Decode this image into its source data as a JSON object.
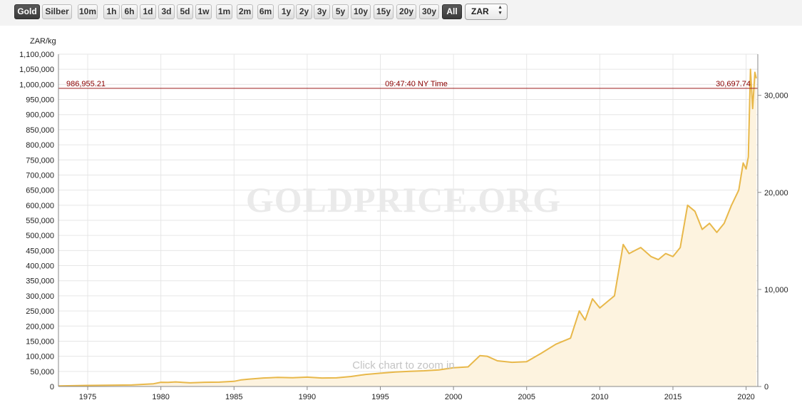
{
  "toolbar": {
    "metals": [
      {
        "label": "Gold",
        "active": true
      },
      {
        "label": "Silber",
        "active": false
      }
    ],
    "ranges": [
      "10m",
      "1h",
      "6h",
      "1d",
      "3d",
      "5d",
      "1w",
      "1m",
      "2m",
      "6m",
      "1y",
      "2y",
      "3y",
      "5y",
      "10y",
      "15y",
      "20y",
      "30y",
      "All"
    ],
    "active_range": "All",
    "currency": "ZAR"
  },
  "chart": {
    "watermark": "GOLDPRICE.ORG",
    "zoom_hint": "Click chart to zoom in",
    "crosshair": {
      "left_value": "986,955.21",
      "time": "09:47:40 NY Time",
      "right_value": "30,697.74"
    }
  },
  "colors": {
    "line": "#e8b84a",
    "fill": "#fdf3df",
    "marker": "#9b1b1b",
    "grid": "#e6e6e6"
  },
  "chart_data": {
    "type": "area",
    "series": [],
    "ylabel": "ZAR/kg",
    "ylim": [
      0,
      1100000
    ],
    "yticks": [
      "0",
      "50,000",
      "100,000",
      "150,000",
      "200,000",
      "250,000",
      "300,000",
      "350,000",
      "400,000",
      "450,000",
      "500,000",
      "550,000",
      "600,000",
      "650,000",
      "700,000",
      "750,000",
      "800,000",
      "850,000",
      "900,000",
      "950,000",
      "1,000,000",
      "1,050,000",
      "1,100,000"
    ],
    "y2ticks": [
      "0",
      "10,000",
      "20,000",
      "30,000"
    ],
    "y2lim": [
      0,
      34240
    ],
    "xlim": [
      1973.0,
      2020.8
    ],
    "xticks": [
      "1975",
      "1980",
      "1985",
      "1990",
      "1995",
      "2000",
      "2005",
      "2010",
      "2015",
      "2020"
    ],
    "grid": true,
    "crosshair_value": 986955.21,
    "points": [
      [
        1973.0,
        2000
      ],
      [
        1975.0,
        3500
      ],
      [
        1978.0,
        5000
      ],
      [
        1979.5,
        9000
      ],
      [
        1980.0,
        14000
      ],
      [
        1980.5,
        13500
      ],
      [
        1981.0,
        15000
      ],
      [
        1982.0,
        12000
      ],
      [
        1983.0,
        14000
      ],
      [
        1984.0,
        14500
      ],
      [
        1985.0,
        17000
      ],
      [
        1985.5,
        22000
      ],
      [
        1986.0,
        24000
      ],
      [
        1987.0,
        28000
      ],
      [
        1988.0,
        30000
      ],
      [
        1989.0,
        29000
      ],
      [
        1990.0,
        31000
      ],
      [
        1991.0,
        28000
      ],
      [
        1992.0,
        28500
      ],
      [
        1993.0,
        33000
      ],
      [
        1994.0,
        40000
      ],
      [
        1995.0,
        44000
      ],
      [
        1996.0,
        48000
      ],
      [
        1997.0,
        50000
      ],
      [
        1998.0,
        52000
      ],
      [
        1999.0,
        55000
      ],
      [
        2000.0,
        62000
      ],
      [
        2001.0,
        65000
      ],
      [
        2001.8,
        102000
      ],
      [
        2002.3,
        100000
      ],
      [
        2003.0,
        85000
      ],
      [
        2004.0,
        80000
      ],
      [
        2005.0,
        82000
      ],
      [
        2006.0,
        110000
      ],
      [
        2007.0,
        140000
      ],
      [
        2008.0,
        160000
      ],
      [
        2008.6,
        250000
      ],
      [
        2009.0,
        220000
      ],
      [
        2009.5,
        290000
      ],
      [
        2010.0,
        260000
      ],
      [
        2010.5,
        280000
      ],
      [
        2011.0,
        300000
      ],
      [
        2011.6,
        470000
      ],
      [
        2012.0,
        440000
      ],
      [
        2012.8,
        460000
      ],
      [
        2013.5,
        430000
      ],
      [
        2014.0,
        420000
      ],
      [
        2014.5,
        440000
      ],
      [
        2015.0,
        430000
      ],
      [
        2015.5,
        460000
      ],
      [
        2016.0,
        600000
      ],
      [
        2016.5,
        580000
      ],
      [
        2017.0,
        520000
      ],
      [
        2017.5,
        540000
      ],
      [
        2018.0,
        510000
      ],
      [
        2018.5,
        540000
      ],
      [
        2019.0,
        600000
      ],
      [
        2019.5,
        650000
      ],
      [
        2019.8,
        740000
      ],
      [
        2020.0,
        720000
      ],
      [
        2020.15,
        760000
      ],
      [
        2020.3,
        1050000
      ],
      [
        2020.45,
        920000
      ],
      [
        2020.6,
        1040000
      ],
      [
        2020.7,
        1020000
      ]
    ]
  }
}
